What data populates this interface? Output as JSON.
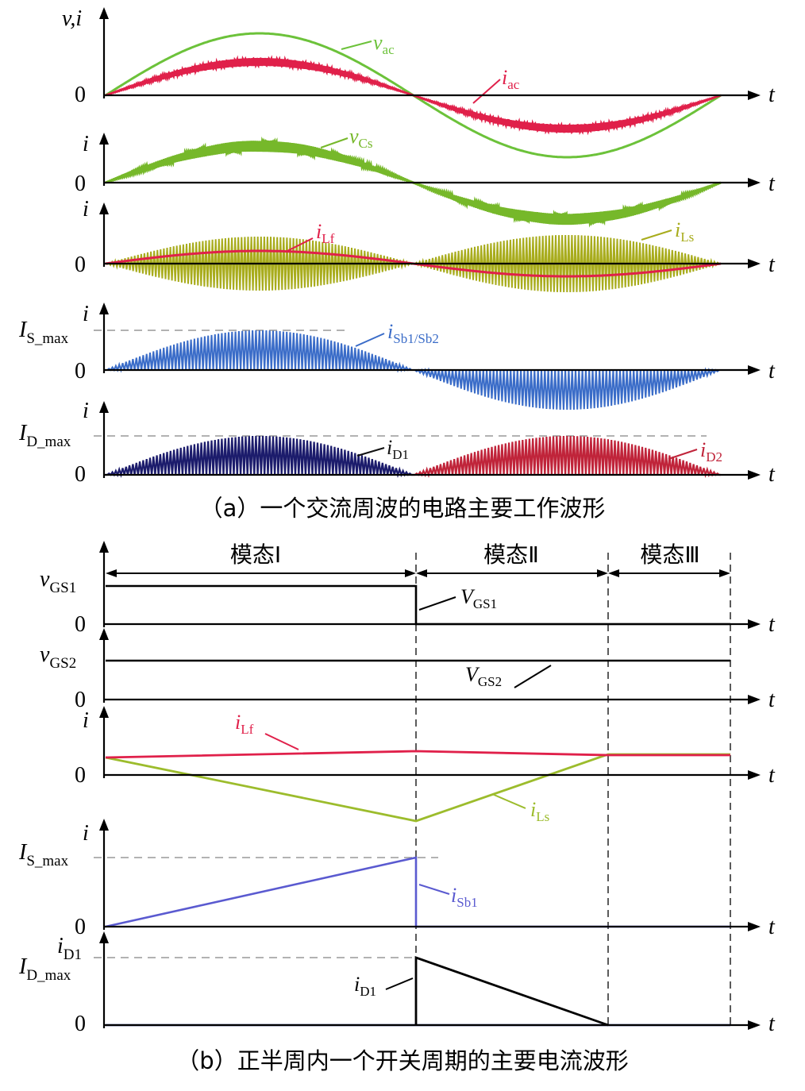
{
  "colors": {
    "v_ac": "#6cc23a",
    "i_ac": "#e0204a",
    "v_Cs": "#76b82a",
    "i_Lf": "#e0204a",
    "i_Ls": "#a8ac1c",
    "i_Sb": "#3a6cc8",
    "i_D1": "#1c1c6c",
    "i_D2": "#c0243a",
    "i_Sb1_b": "#5a5ad0",
    "i_Ls_b": "#9cbc2c",
    "gate": "#000000"
  },
  "part_a": {
    "caption": "（a）一个交流周波的电路主要工作波形",
    "axis_t": "t",
    "zero": "0",
    "panel1": {
      "ylabel": "v,i",
      "v_label": "v",
      "v_sub": "ac",
      "i_label": "i",
      "i_sub": "ac"
    },
    "panel2": {
      "ylabel": "i",
      "label": "v",
      "sub": "Cs"
    },
    "panel3": {
      "ylabel": "i",
      "lf_label": "i",
      "lf_sub": "Lf",
      "ls_label": "i",
      "ls_sub": "Ls"
    },
    "panel4": {
      "ylabel": "i",
      "max_I": "I",
      "max_sub": "S_max",
      "label": "i",
      "sub": "Sb1/Sb2"
    },
    "panel5": {
      "ylabel": "i",
      "max_I": "I",
      "max_sub": "D_max",
      "d1_label": "i",
      "d1_sub": "D1",
      "d2_label": "i",
      "d2_sub": "D2"
    }
  },
  "part_b": {
    "caption": "（b）正半周内一个开关周期的主要电流波形",
    "axis_t": "t",
    "zero": "0",
    "modes": [
      "模态Ⅰ",
      "模态Ⅱ",
      "模态Ⅲ"
    ],
    "gs1": {
      "ylabel": "v",
      "ysub": "GS1",
      "label": "V",
      "sub": "GS1"
    },
    "gs2": {
      "ylabel": "v",
      "ysub": "GS2",
      "label": "V",
      "sub": "GS2"
    },
    "currents": {
      "ylabel": "i",
      "lf_label": "i",
      "lf_sub": "Lf",
      "ls_label": "i",
      "ls_sub": "Ls"
    },
    "sb1": {
      "ylabel": "i",
      "max_I": "I",
      "max_sub": "S_max",
      "label": "i",
      "sub": "Sb1"
    },
    "d1": {
      "ylabel": "i",
      "ysub": "D1",
      "max_I": "I",
      "max_sub": "D_max",
      "label": "i",
      "sub": "D1"
    }
  }
}
